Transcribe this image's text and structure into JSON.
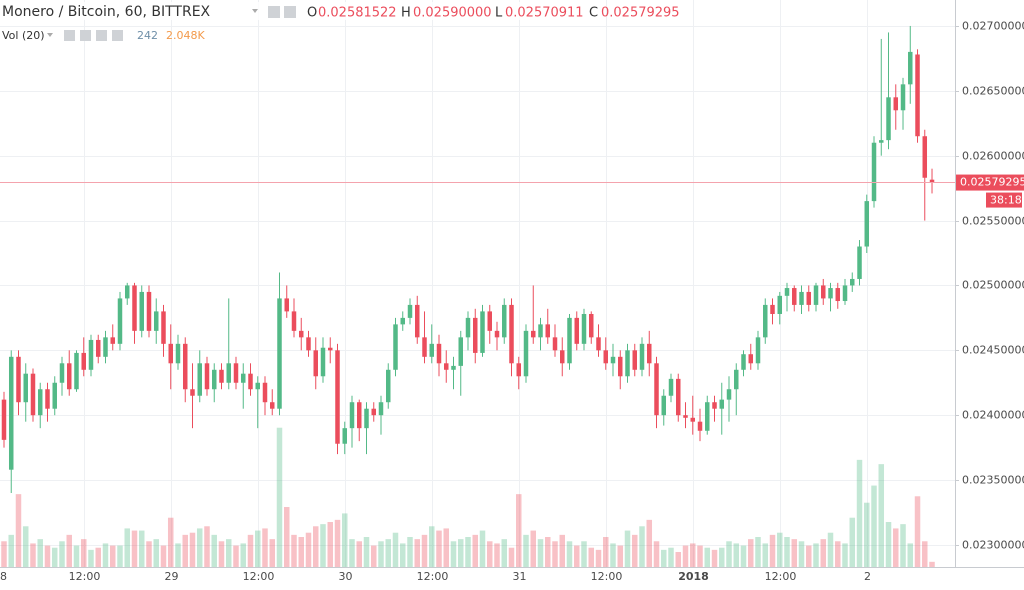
{
  "chart_data": {
    "type": "candlestick",
    "title": "Monero / Bitcoin, 60, BITTREX",
    "ohlc_labels": {
      "o": "O",
      "o_value": "0.02581522",
      "h": "H",
      "h_value": "0.02590000",
      "l": "L",
      "l_value": "0.02570911",
      "c": "C",
      "c_value": "0.02579295"
    },
    "volume_title": "Vol (20)",
    "volume_last": "242",
    "volume_ma": "2.048K",
    "last_price": {
      "value": 0.02579295,
      "label": "0.02579295"
    },
    "countdown": "38:18",
    "up_color": "#53b987",
    "down_color": "#eb4d5c",
    "xlim": [
      -0.55,
      131.17
    ],
    "ylim": [
      0.02283,
      0.0272
    ],
    "volume_ylim": [
      0,
      7000
    ],
    "xticks": [
      {
        "value": -1,
        "label": "8"
      },
      {
        "value": 11,
        "label": "12:00"
      },
      {
        "value": 23,
        "label": "29"
      },
      {
        "value": 35,
        "label": "12:00"
      },
      {
        "value": 47,
        "label": "30"
      },
      {
        "value": 59,
        "label": "12:00"
      },
      {
        "value": 71,
        "label": "31"
      },
      {
        "value": 83,
        "label": "12:00"
      },
      {
        "value": 95,
        "label": "2018"
      },
      {
        "value": 107,
        "label": "12:00"
      },
      {
        "value": 119,
        "label": "2"
      }
    ],
    "yticks": [
      {
        "value": 0.023,
        "label": "0.02300000"
      },
      {
        "value": 0.0235,
        "label": "0.02350000"
      },
      {
        "value": 0.024,
        "label": "0.02400000"
      },
      {
        "value": 0.0245,
        "label": "0.02450000"
      },
      {
        "value": 0.025,
        "label": "0.02500000"
      },
      {
        "value": 0.0255,
        "label": "0.02550000"
      },
      {
        "value": 0.026,
        "label": "0.02600000"
      },
      {
        "value": 0.0265,
        "label": "0.02650000"
      },
      {
        "value": 0.027,
        "label": "0.02700000"
      }
    ],
    "ohlc": [
      [
        0.02412,
        0.02418,
        0.02375,
        0.02381
      ],
      [
        0.02358,
        0.0245,
        0.0234,
        0.02445
      ],
      [
        0.02445,
        0.0245,
        0.024,
        0.0241
      ],
      [
        0.0241,
        0.0244,
        0.02395,
        0.02432
      ],
      [
        0.02432,
        0.02436,
        0.02395,
        0.024
      ],
      [
        0.024,
        0.02425,
        0.0239,
        0.0242
      ],
      [
        0.0242,
        0.02425,
        0.02395,
        0.02405
      ],
      [
        0.02405,
        0.0243,
        0.024,
        0.02425
      ],
      [
        0.02425,
        0.02445,
        0.02415,
        0.0244
      ],
      [
        0.0244,
        0.0245,
        0.02415,
        0.0242
      ],
      [
        0.0242,
        0.0245,
        0.02418,
        0.02448
      ],
      [
        0.02448,
        0.0246,
        0.0243,
        0.02435
      ],
      [
        0.02435,
        0.02462,
        0.0243,
        0.02458
      ],
      [
        0.02458,
        0.02462,
        0.0244,
        0.02445
      ],
      [
        0.02445,
        0.02465,
        0.0244,
        0.0246
      ],
      [
        0.0246,
        0.0247,
        0.0245,
        0.02455
      ],
      [
        0.02455,
        0.02495,
        0.0245,
        0.0249
      ],
      [
        0.0249,
        0.02502,
        0.02485,
        0.025
      ],
      [
        0.025,
        0.02502,
        0.02455,
        0.02465
      ],
      [
        0.02465,
        0.025,
        0.0246,
        0.02495
      ],
      [
        0.02495,
        0.025,
        0.0246,
        0.02465
      ],
      [
        0.02465,
        0.0249,
        0.02455,
        0.0248
      ],
      [
        0.0248,
        0.02485,
        0.02445,
        0.02455
      ],
      [
        0.02455,
        0.0247,
        0.0242,
        0.0244
      ],
      [
        0.0244,
        0.02462,
        0.02435,
        0.02455
      ],
      [
        0.02455,
        0.0246,
        0.0241,
        0.0242
      ],
      [
        0.0242,
        0.0244,
        0.0239,
        0.02415
      ],
      [
        0.02415,
        0.0245,
        0.0241,
        0.0244
      ],
      [
        0.0244,
        0.02445,
        0.02415,
        0.0242
      ],
      [
        0.0242,
        0.0244,
        0.0241,
        0.02435
      ],
      [
        0.02435,
        0.0244,
        0.0242,
        0.02425
      ],
      [
        0.02425,
        0.0249,
        0.0242,
        0.0244
      ],
      [
        0.0244,
        0.02445,
        0.0242,
        0.02425
      ],
      [
        0.02425,
        0.0244,
        0.02405,
        0.02432
      ],
      [
        0.02432,
        0.0244,
        0.02415,
        0.0242
      ],
      [
        0.0242,
        0.0243,
        0.0239,
        0.02425
      ],
      [
        0.02425,
        0.0243,
        0.024,
        0.0241
      ],
      [
        0.0241,
        0.0242,
        0.024,
        0.02405
      ],
      [
        0.02405,
        0.0251,
        0.024,
        0.0249
      ],
      [
        0.0249,
        0.025,
        0.02475,
        0.0248
      ],
      [
        0.0248,
        0.0249,
        0.0246,
        0.02465
      ],
      [
        0.02465,
        0.02475,
        0.0245,
        0.0246
      ],
      [
        0.0246,
        0.02465,
        0.02445,
        0.0245
      ],
      [
        0.0245,
        0.0246,
        0.0242,
        0.0243
      ],
      [
        0.0243,
        0.0246,
        0.02425,
        0.02452
      ],
      [
        0.02452,
        0.0246,
        0.0244,
        0.0245
      ],
      [
        0.0245,
        0.02455,
        0.0237,
        0.02378
      ],
      [
        0.02378,
        0.02395,
        0.0237,
        0.0239
      ],
      [
        0.0239,
        0.02415,
        0.02375,
        0.0241
      ],
      [
        0.0241,
        0.02412,
        0.0238,
        0.0239
      ],
      [
        0.0239,
        0.0241,
        0.0237,
        0.02405
      ],
      [
        0.02405,
        0.0241,
        0.02395,
        0.024
      ],
      [
        0.024,
        0.02415,
        0.02385,
        0.0241
      ],
      [
        0.0241,
        0.0244,
        0.02405,
        0.02435
      ],
      [
        0.02435,
        0.02475,
        0.0243,
        0.0247
      ],
      [
        0.0247,
        0.0248,
        0.02465,
        0.02475
      ],
      [
        0.02475,
        0.0249,
        0.0247,
        0.02485
      ],
      [
        0.02485,
        0.02492,
        0.02455,
        0.0246
      ],
      [
        0.0246,
        0.0248,
        0.0244,
        0.02445
      ],
      [
        0.02445,
        0.0247,
        0.0244,
        0.02455
      ],
      [
        0.02455,
        0.02462,
        0.0243,
        0.0244
      ],
      [
        0.0244,
        0.0245,
        0.02425,
        0.02435
      ],
      [
        0.02435,
        0.02445,
        0.0242,
        0.02438
      ],
      [
        0.02438,
        0.02465,
        0.02415,
        0.0246
      ],
      [
        0.0246,
        0.0248,
        0.0245,
        0.02475
      ],
      [
        0.02475,
        0.02482,
        0.0244,
        0.02448
      ],
      [
        0.02448,
        0.02485,
        0.02445,
        0.0248
      ],
      [
        0.0248,
        0.02485,
        0.02455,
        0.02465
      ],
      [
        0.02465,
        0.02472,
        0.0245,
        0.0246
      ],
      [
        0.0246,
        0.0249,
        0.02455,
        0.02485
      ],
      [
        0.02485,
        0.0249,
        0.0243,
        0.0244
      ],
      [
        0.0244,
        0.02445,
        0.0242,
        0.0243
      ],
      [
        0.0243,
        0.0247,
        0.02425,
        0.02465
      ],
      [
        0.02465,
        0.025,
        0.02455,
        0.0246
      ],
      [
        0.0246,
        0.02475,
        0.0245,
        0.0247
      ],
      [
        0.0247,
        0.02482,
        0.02455,
        0.0246
      ],
      [
        0.0246,
        0.0247,
        0.02445,
        0.0245
      ],
      [
        0.0245,
        0.0246,
        0.0243,
        0.0244
      ],
      [
        0.0244,
        0.02478,
        0.02435,
        0.02475
      ],
      [
        0.02475,
        0.0248,
        0.0245,
        0.02455
      ],
      [
        0.02455,
        0.02482,
        0.0245,
        0.02478
      ],
      [
        0.02478,
        0.0248,
        0.02455,
        0.0246
      ],
      [
        0.0246,
        0.0247,
        0.02445,
        0.0245
      ],
      [
        0.0245,
        0.0246,
        0.02435,
        0.0244
      ],
      [
        0.0244,
        0.02455,
        0.0243,
        0.02445
      ],
      [
        0.02445,
        0.0245,
        0.0242,
        0.0243
      ],
      [
        0.0243,
        0.02455,
        0.02425,
        0.0245
      ],
      [
        0.0245,
        0.02455,
        0.0243,
        0.02435
      ],
      [
        0.02435,
        0.0246,
        0.0243,
        0.02455
      ],
      [
        0.02455,
        0.02465,
        0.0243,
        0.0244
      ],
      [
        0.0244,
        0.02445,
        0.0239,
        0.024
      ],
      [
        0.024,
        0.0242,
        0.02392,
        0.02415
      ],
      [
        0.02415,
        0.02432,
        0.0241,
        0.02428
      ],
      [
        0.02428,
        0.02432,
        0.02395,
        0.024
      ],
      [
        0.024,
        0.0241,
        0.0239,
        0.02398
      ],
      [
        0.02398,
        0.02415,
        0.02385,
        0.02395
      ],
      [
        0.02395,
        0.02405,
        0.0238,
        0.02388
      ],
      [
        0.02388,
        0.02415,
        0.02385,
        0.0241
      ],
      [
        0.0241,
        0.02415,
        0.02395,
        0.02405
      ],
      [
        0.02405,
        0.02425,
        0.02385,
        0.02412
      ],
      [
        0.02412,
        0.0243,
        0.02395,
        0.0242
      ],
      [
        0.0242,
        0.0244,
        0.024,
        0.02435
      ],
      [
        0.02435,
        0.0245,
        0.0243,
        0.02447
      ],
      [
        0.02447,
        0.02455,
        0.02435,
        0.0244
      ],
      [
        0.0244,
        0.02465,
        0.02435,
        0.0246
      ],
      [
        0.0246,
        0.0249,
        0.02455,
        0.02485
      ],
      [
        0.02485,
        0.0249,
        0.0247,
        0.02478
      ],
      [
        0.02478,
        0.02495,
        0.0247,
        0.02492
      ],
      [
        0.02492,
        0.02502,
        0.0248,
        0.02498
      ],
      [
        0.02498,
        0.025,
        0.0248,
        0.02485
      ],
      [
        0.02485,
        0.025,
        0.02478,
        0.02495
      ],
      [
        0.02495,
        0.025,
        0.0248,
        0.02485
      ],
      [
        0.02485,
        0.02502,
        0.0248,
        0.025
      ],
      [
        0.025,
        0.02505,
        0.02485,
        0.0249
      ],
      [
        0.0249,
        0.02502,
        0.0248,
        0.02498
      ],
      [
        0.02498,
        0.02502,
        0.02482,
        0.02488
      ],
      [
        0.02488,
        0.02505,
        0.02485,
        0.025
      ],
      [
        0.025,
        0.0251,
        0.02495,
        0.02505
      ],
      [
        0.02505,
        0.02535,
        0.025,
        0.0253
      ],
      [
        0.0253,
        0.0257,
        0.02525,
        0.02565
      ],
      [
        0.02565,
        0.02615,
        0.0256,
        0.0261
      ],
      [
        0.0261,
        0.0269,
        0.026,
        0.02612
      ],
      [
        0.02612,
        0.02695,
        0.02605,
        0.02645
      ],
      [
        0.02645,
        0.02655,
        0.0262,
        0.02635
      ],
      [
        0.02635,
        0.0266,
        0.0262,
        0.02655
      ],
      [
        0.02655,
        0.027,
        0.0264,
        0.0268
      ],
      [
        0.02678,
        0.02682,
        0.0261,
        0.02615
      ],
      [
        0.02615,
        0.0262,
        0.0255,
        0.02583
      ],
      [
        0.02581522,
        0.0259,
        0.02570911,
        0.02579295
      ]
    ],
    "volume": [
      1200,
      1500,
      3400,
      1900,
      1100,
      1300,
      1000,
      900,
      1200,
      1500,
      1000,
      1300,
      800,
      900,
      1100,
      1000,
      1000,
      1800,
      1700,
      1700,
      1200,
      1300,
      1000,
      2300,
      1100,
      1500,
      1600,
      1800,
      1900,
      1500,
      1200,
      1300,
      1000,
      1100,
      1500,
      1700,
      1800,
      1300,
      6500,
      2800,
      1500,
      1400,
      1600,
      1900,
      2000,
      2100,
      2200,
      2500,
      1300,
      1200,
      1400,
      1000,
      1200,
      1300,
      1600,
      1100,
      1400,
      1300,
      1500,
      1900,
      1700,
      1800,
      1200,
      1300,
      1400,
      1500,
      1700,
      1200,
      1100,
      1300,
      900,
      3400,
      1500,
      1700,
      1300,
      1400,
      1200,
      1500,
      1200,
      1000,
      1200,
      900,
      800,
      1400,
      1100,
      1000,
      1700,
      1500,
      1900,
      2200,
      1200,
      800,
      900,
      700,
      1000,
      1100,
      1000,
      900,
      800,
      900,
      1200,
      1100,
      1000,
      1300,
      1400,
      1100,
      1500,
      1600,
      1400,
      1300,
      1200,
      1000,
      1100,
      1300,
      1600,
      1200,
      1100,
      2300,
      5000,
      3000,
      3800,
      4800,
      2100,
      1800,
      2000,
      1100,
      3300,
      1200,
      242
    ]
  }
}
